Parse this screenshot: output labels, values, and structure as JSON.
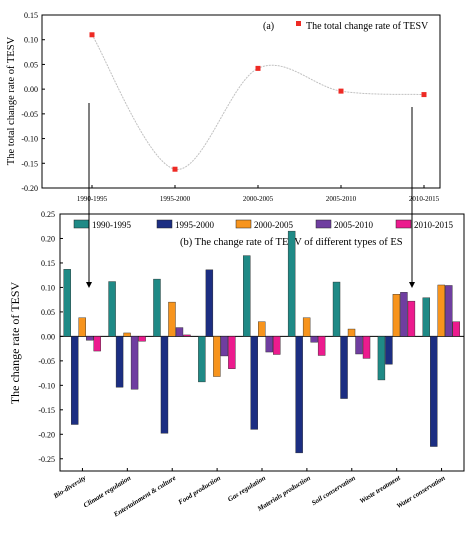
{
  "chart_data": [
    {
      "type": "line",
      "panel": "(a)",
      "legend": [
        "The total change rate of TESV"
      ],
      "legend_placement": "top-right",
      "ylabel": "The total change rate of TESV",
      "ylim": [
        -0.2,
        0.15
      ],
      "yticks": [
        "0.15",
        "0.10",
        "0.05",
        "0.00",
        "-0.05",
        "-0.10",
        "-0.15",
        "-0.20"
      ],
      "categories": [
        "1990-1995",
        "1995-2000",
        "2000-2005",
        "2005-2010",
        "2010-2015"
      ],
      "values": [
        0.11,
        -0.162,
        0.042,
        -0.004,
        -0.011
      ],
      "smooth": true,
      "grid": false,
      "colors": {
        "marker": "#ee2a24",
        "line": "#c0c0c0"
      }
    },
    {
      "type": "bar",
      "caption": "(b) The change rate of TESV of different types of ES",
      "ylabel": "The change rate of TESV",
      "ylim": [
        -0.275,
        0.25
      ],
      "yticks": [
        "0.25",
        "0.20",
        "0.15",
        "0.10",
        "0.05",
        "0.00",
        "-0.05",
        "-0.10",
        "-0.15",
        "-0.20",
        "-0.25"
      ],
      "legend_placement": "top",
      "grid": false,
      "categories": [
        "Bio-diversity",
        "Climate regulation",
        "Entertainment & culture",
        "Food production",
        "Gas regulation",
        "Materials production",
        "Soil conservation",
        "Waste treatment",
        "Water conservation"
      ],
      "series": [
        {
          "name": "1990-1995",
          "color": "#1f8a86",
          "values": [
            0.137,
            0.112,
            0.117,
            -0.093,
            0.165,
            0.215,
            0.111,
            -0.089,
            0.079
          ]
        },
        {
          "name": "1995-2000",
          "color": "#1c2e82",
          "values": [
            -0.18,
            -0.104,
            -0.198,
            0.136,
            -0.19,
            -0.238,
            -0.127,
            -0.057,
            -0.225
          ]
        },
        {
          "name": "2000-2005",
          "color": "#f7941d",
          "values": [
            0.038,
            0.007,
            0.07,
            -0.082,
            0.03,
            0.038,
            0.015,
            0.086,
            0.105
          ]
        },
        {
          "name": "2005-2010",
          "color": "#6f3ea0",
          "values": [
            -0.008,
            -0.108,
            0.018,
            -0.04,
            -0.032,
            -0.012,
            -0.036,
            0.09,
            0.104
          ]
        },
        {
          "name": "2010-2015",
          "color": "#ec1b8e",
          "values": [
            -0.03,
            -0.01,
            0.003,
            -0.066,
            -0.037,
            -0.039,
            -0.045,
            0.072,
            0.03
          ]
        }
      ]
    }
  ]
}
